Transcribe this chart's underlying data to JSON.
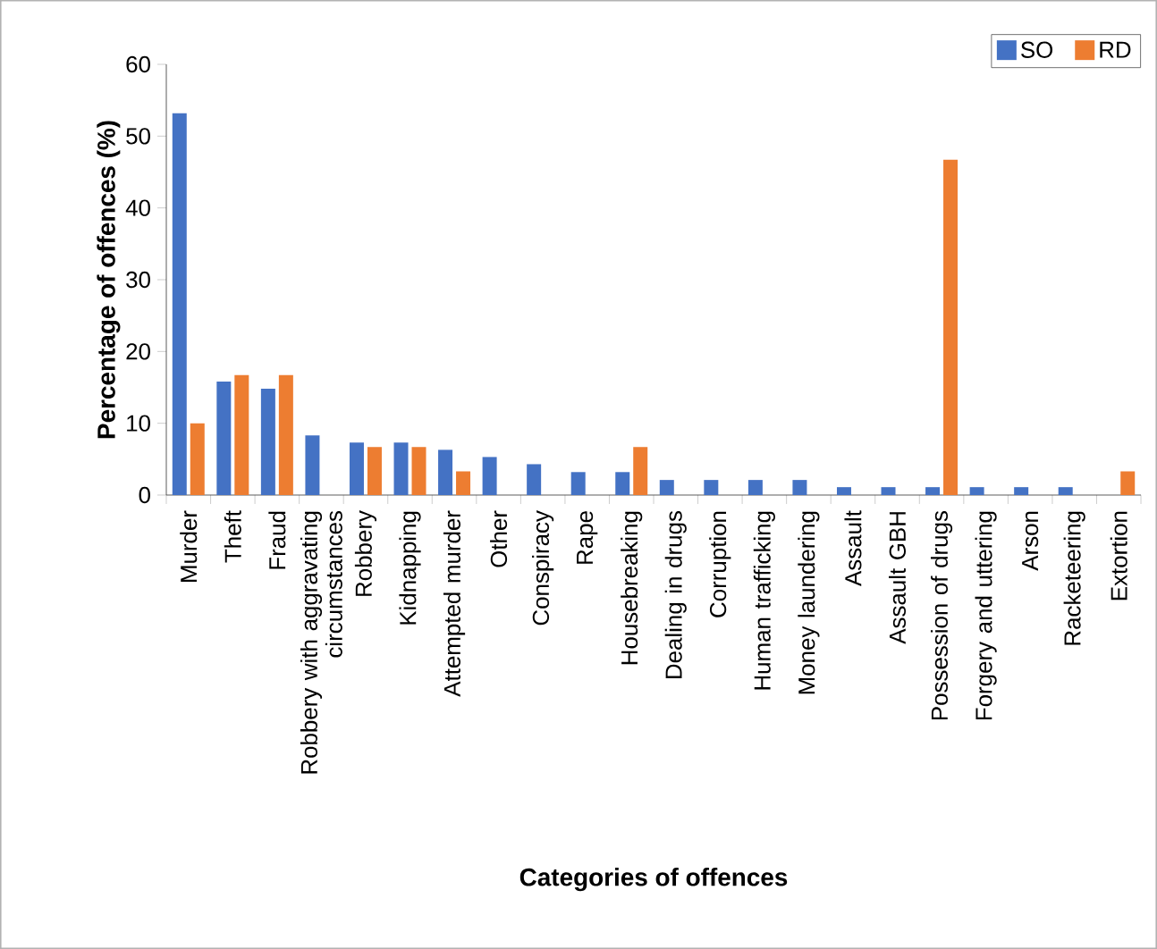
{
  "chart_data": {
    "type": "bar",
    "xlabel": "Categories of offences",
    "ylabel": "Percentage of offences (%)",
    "categories": [
      "Murder",
      "Theft",
      "Fraud",
      "Robbery with aggravating circumstances",
      "Robbery",
      "Kidnapping",
      "Attempted murder",
      "Other",
      "Conspiracy",
      "Rape",
      "Housebreaking",
      "Dealing in drugs",
      "Corruption",
      "Human trafficking",
      "Money laundering",
      "Assault",
      "Assault GBH",
      "Possession of drugs",
      "Forgery and uttering",
      "Arson",
      "Racketeering",
      "Extortion"
    ],
    "series": [
      {
        "name": "SO",
        "color": "#4472c4",
        "values": [
          53.2,
          15.8,
          14.8,
          8.3,
          7.3,
          7.3,
          6.3,
          5.3,
          4.3,
          3.2,
          3.2,
          2.1,
          2.1,
          2.1,
          2.1,
          1.1,
          1.1,
          1.1,
          1.1,
          1.1,
          1.1,
          null
        ]
      },
      {
        "name": "RD",
        "color": "#ed7d31",
        "values": [
          10,
          16.7,
          16.7,
          null,
          6.7,
          6.7,
          3.3,
          null,
          null,
          null,
          6.7,
          null,
          null,
          null,
          null,
          null,
          null,
          46.7,
          null,
          null,
          null,
          3.3
        ]
      }
    ],
    "ylim": [
      0,
      60
    ],
    "yticks": [
      0,
      10,
      20,
      30,
      40,
      50,
      60
    ],
    "legend": "top right"
  }
}
